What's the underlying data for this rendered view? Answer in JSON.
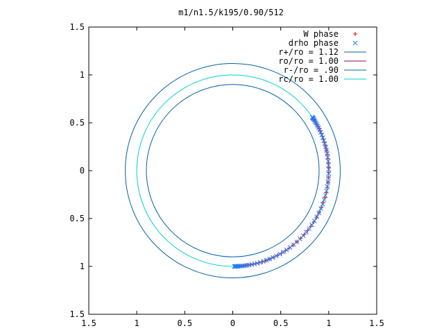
{
  "chart_data": {
    "type": "scatter",
    "title": "m1/n1.5/k195/0.90/512",
    "xlabel": "",
    "ylabel": "",
    "xlim": [
      -1.5,
      1.5
    ],
    "ylim": [
      -1.5,
      1.5
    ],
    "x_ticks": [
      {
        "value": -1.5,
        "label": "1.5"
      },
      {
        "value": -1.0,
        "label": "1"
      },
      {
        "value": -0.5,
        "label": "0.5"
      },
      {
        "value": 0.0,
        "label": "0"
      },
      {
        "value": 0.5,
        "label": "0.5"
      },
      {
        "value": 1.0,
        "label": "1"
      },
      {
        "value": 1.5,
        "label": "1.5"
      }
    ],
    "y_ticks": [
      {
        "value": 1.5,
        "label": "1.5"
      },
      {
        "value": 1.0,
        "label": "1"
      },
      {
        "value": 0.5,
        "label": "0.5"
      },
      {
        "value": 0.0,
        "label": "0"
      },
      {
        "value": -0.5,
        "label": "0.5"
      },
      {
        "value": -1.0,
        "label": "1"
      },
      {
        "value": -1.5,
        "label": "1.5"
      }
    ],
    "grid": false,
    "legend_position": "top-right",
    "series": [
      {
        "name": "W phase",
        "kind": "points",
        "marker": "plus",
        "color": "#ff0000",
        "radius": 1.0,
        "angle_start_deg": -88,
        "angle_end_deg": 33,
        "count": 60
      },
      {
        "name": "drho phase",
        "kind": "points",
        "marker": "cross",
        "color": "#1f7fff",
        "radius": 1.0,
        "angle_start_deg": -89,
        "angle_end_deg": 34,
        "count": 70
      },
      {
        "name": "r+/ro = 1.12",
        "kind": "circle",
        "radius": 1.12,
        "color": "#0060ad"
      },
      {
        "name": "ro/ro = 1.00",
        "kind": "circle",
        "radius": 1.0,
        "color": "#8b0a50",
        "visible_in_plot": false
      },
      {
        "name": "r-/ro = .90",
        "kind": "circle",
        "radius": 0.9,
        "color": "#0060ad"
      },
      {
        "name": "rc/ro = 1.00",
        "kind": "circle",
        "radius": 1.0,
        "color": "#00d0d0"
      }
    ]
  }
}
